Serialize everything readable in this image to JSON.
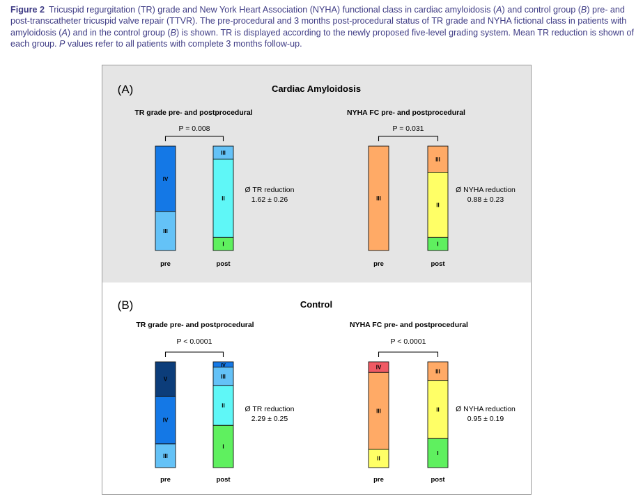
{
  "caption": {
    "label": "Figure 2",
    "parts": [
      {
        "t": "Tricuspid regurgitation (TR) grade and New York Heart Association (NYHA) functional class in cardiac amyloidosis (",
        "i": false
      },
      {
        "t": "A",
        "i": true
      },
      {
        "t": ") and control group (",
        "i": false
      },
      {
        "t": "B",
        "i": true
      },
      {
        "t": ") pre- and post-transcatheter tricuspid valve repair (TTVR). The pre-procedural and 3 months post-procedural status of TR grade and NYHA fictional class in patients with amyloidosis (",
        "i": false
      },
      {
        "t": "A",
        "i": true
      },
      {
        "t": ") and in the control group (",
        "i": false
      },
      {
        "t": "B",
        "i": true
      },
      {
        "t": ") is shown. TR is displayed according to the newly proposed five-level grading system. Mean TR reduction is shown of each group. ",
        "i": false
      },
      {
        "t": "P",
        "i": true
      },
      {
        "t": " values refer to all patients with complete 3 months follow-up.",
        "i": false
      }
    ]
  },
  "colors": {
    "I": "#5ff05f",
    "II_tr": "#5ff7f7",
    "III_tr": "#64c2f7",
    "IV_tr": "#1478e6",
    "V_tr": "#0c3d7a",
    "I_nyha": "#5ff05f",
    "II_nyha": "#ffff66",
    "III_nyha": "#ffaa66",
    "IV_nyha": "#f05a64",
    "panel_a_bg": "#e5e5e5",
    "panel_b_bg": "#ffffff"
  },
  "chart_data": [
    {
      "type": "bar",
      "stacked": true,
      "panel": "(A)",
      "panel_title": "Cardiac Amyloidosis",
      "title": "TR grade pre- and postprocedural",
      "categories": [
        "pre",
        "post"
      ],
      "series": [
        {
          "name": "I",
          "color_key": "I",
          "values": [
            0,
            12.5
          ]
        },
        {
          "name": "II",
          "color_key": "II_tr",
          "values": [
            0,
            75
          ]
        },
        {
          "name": "III",
          "color_key": "III_tr",
          "values": [
            37.5,
            12.5
          ]
        },
        {
          "name": "IV",
          "color_key": "IV_tr",
          "values": [
            62.5,
            0
          ]
        },
        {
          "name": "V",
          "color_key": "V_tr",
          "values": [
            0,
            0
          ]
        }
      ],
      "ylim": [
        0,
        100
      ],
      "pvalue": "P = 0.008",
      "annotation_line1": "Ø TR reduction",
      "annotation_line2": "1.62 ± 0.26"
    },
    {
      "type": "bar",
      "stacked": true,
      "panel": "(A)",
      "title": "NYHA FC pre- and postprocedural",
      "categories": [
        "pre",
        "post"
      ],
      "series": [
        {
          "name": "I",
          "color_key": "I_nyha",
          "values": [
            0,
            12.5
          ]
        },
        {
          "name": "II",
          "color_key": "II_nyha",
          "values": [
            0,
            62.5
          ]
        },
        {
          "name": "III",
          "color_key": "III_nyha",
          "values": [
            100,
            25
          ]
        },
        {
          "name": "IV",
          "color_key": "IV_nyha",
          "values": [
            0,
            0
          ]
        }
      ],
      "ylim": [
        0,
        100
      ],
      "pvalue": "P = 0.031",
      "annotation_line1": "Ø NYHA reduction",
      "annotation_line2": "0.88 ± 0.23"
    },
    {
      "type": "bar",
      "stacked": true,
      "panel": "(B)",
      "panel_title": "Control",
      "title": "TR grade pre- and postprocedural",
      "categories": [
        "pre",
        "post"
      ],
      "series": [
        {
          "name": "I",
          "color_key": "I",
          "values": [
            0,
            40
          ]
        },
        {
          "name": "II",
          "color_key": "II_tr",
          "values": [
            0,
            37.5
          ]
        },
        {
          "name": "III",
          "color_key": "III_tr",
          "values": [
            22.5,
            17.5
          ]
        },
        {
          "name": "IV",
          "color_key": "IV_tr",
          "values": [
            45,
            5
          ]
        },
        {
          "name": "V",
          "color_key": "V_tr",
          "values": [
            32.5,
            0
          ]
        }
      ],
      "ylim": [
        0,
        100
      ],
      "pvalue": "P < 0.0001",
      "annotation_line1": "Ø TR reduction",
      "annotation_line2": "2.29 ± 0.25"
    },
    {
      "type": "bar",
      "stacked": true,
      "panel": "(B)",
      "title": "NYHA FC pre- and postprocedural",
      "categories": [
        "pre",
        "post"
      ],
      "series": [
        {
          "name": "I",
          "color_key": "I_nyha",
          "values": [
            0,
            27.5
          ]
        },
        {
          "name": "II",
          "color_key": "II_nyha",
          "values": [
            17.5,
            55
          ]
        },
        {
          "name": "III",
          "color_key": "III_nyha",
          "values": [
            72.5,
            17.5
          ]
        },
        {
          "name": "IV",
          "color_key": "IV_nyha",
          "values": [
            10,
            0
          ]
        }
      ],
      "ylim": [
        0,
        100
      ],
      "pvalue": "P < 0.0001",
      "annotation_line1": "Ø NYHA reduction",
      "annotation_line2": "0.95 ± 0.19"
    }
  ]
}
